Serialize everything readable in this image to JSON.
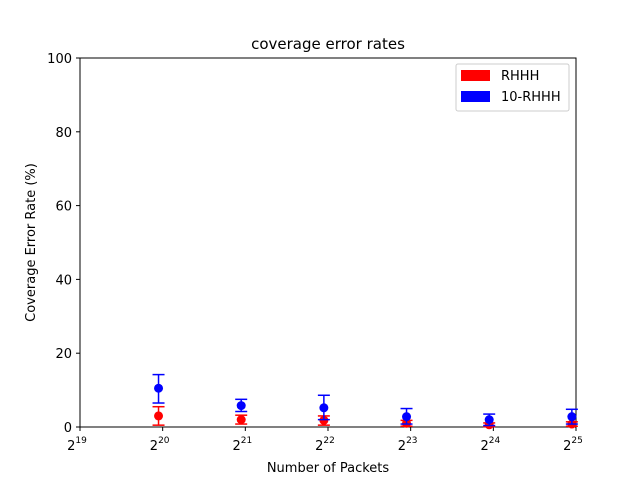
{
  "chart_data": {
    "type": "scatter",
    "title": "coverage error rates",
    "xlabel": "Number of Packets",
    "ylabel": "Coverage Error Rate (%)",
    "x_scale": "log2",
    "xlim": [
      19,
      25
    ],
    "ylim": [
      0,
      100
    ],
    "x_ticks": [
      {
        "base": "2",
        "exp": "19"
      },
      {
        "base": "2",
        "exp": "20"
      },
      {
        "base": "2",
        "exp": "21"
      },
      {
        "base": "2",
        "exp": "22"
      },
      {
        "base": "2",
        "exp": "23"
      },
      {
        "base": "2",
        "exp": "24"
      },
      {
        "base": "2",
        "exp": "25"
      }
    ],
    "y_ticks": [
      "0",
      "20",
      "40",
      "60",
      "80",
      "100"
    ],
    "y_tick_values": [
      0,
      20,
      40,
      60,
      80,
      100
    ],
    "grid": false,
    "legend_position": "top-right",
    "series": [
      {
        "name": "RHHH",
        "color": "#ff0000",
        "x": [
          19.95,
          20.95,
          21.95,
          22.95,
          23.95,
          24.95
        ],
        "y": [
          3.0,
          2.0,
          1.8,
          1.0,
          0.6,
          0.8
        ],
        "err_low": [
          0.5,
          0.8,
          0.5,
          0.2,
          0.1,
          0.2
        ],
        "err_high": [
          5.5,
          3.2,
          3.0,
          1.8,
          1.1,
          1.4
        ]
      },
      {
        "name": "10-RHHH",
        "color": "#0000ff",
        "x": [
          19.95,
          20.95,
          21.95,
          22.95,
          23.95,
          24.95
        ],
        "y": [
          10.5,
          5.8,
          5.2,
          2.8,
          2.0,
          2.8
        ],
        "err_low": [
          6.5,
          4.2,
          2.0,
          0.8,
          0.4,
          0.8
        ],
        "err_high": [
          14.2,
          7.5,
          8.6,
          5.0,
          3.5,
          4.8
        ]
      }
    ]
  }
}
